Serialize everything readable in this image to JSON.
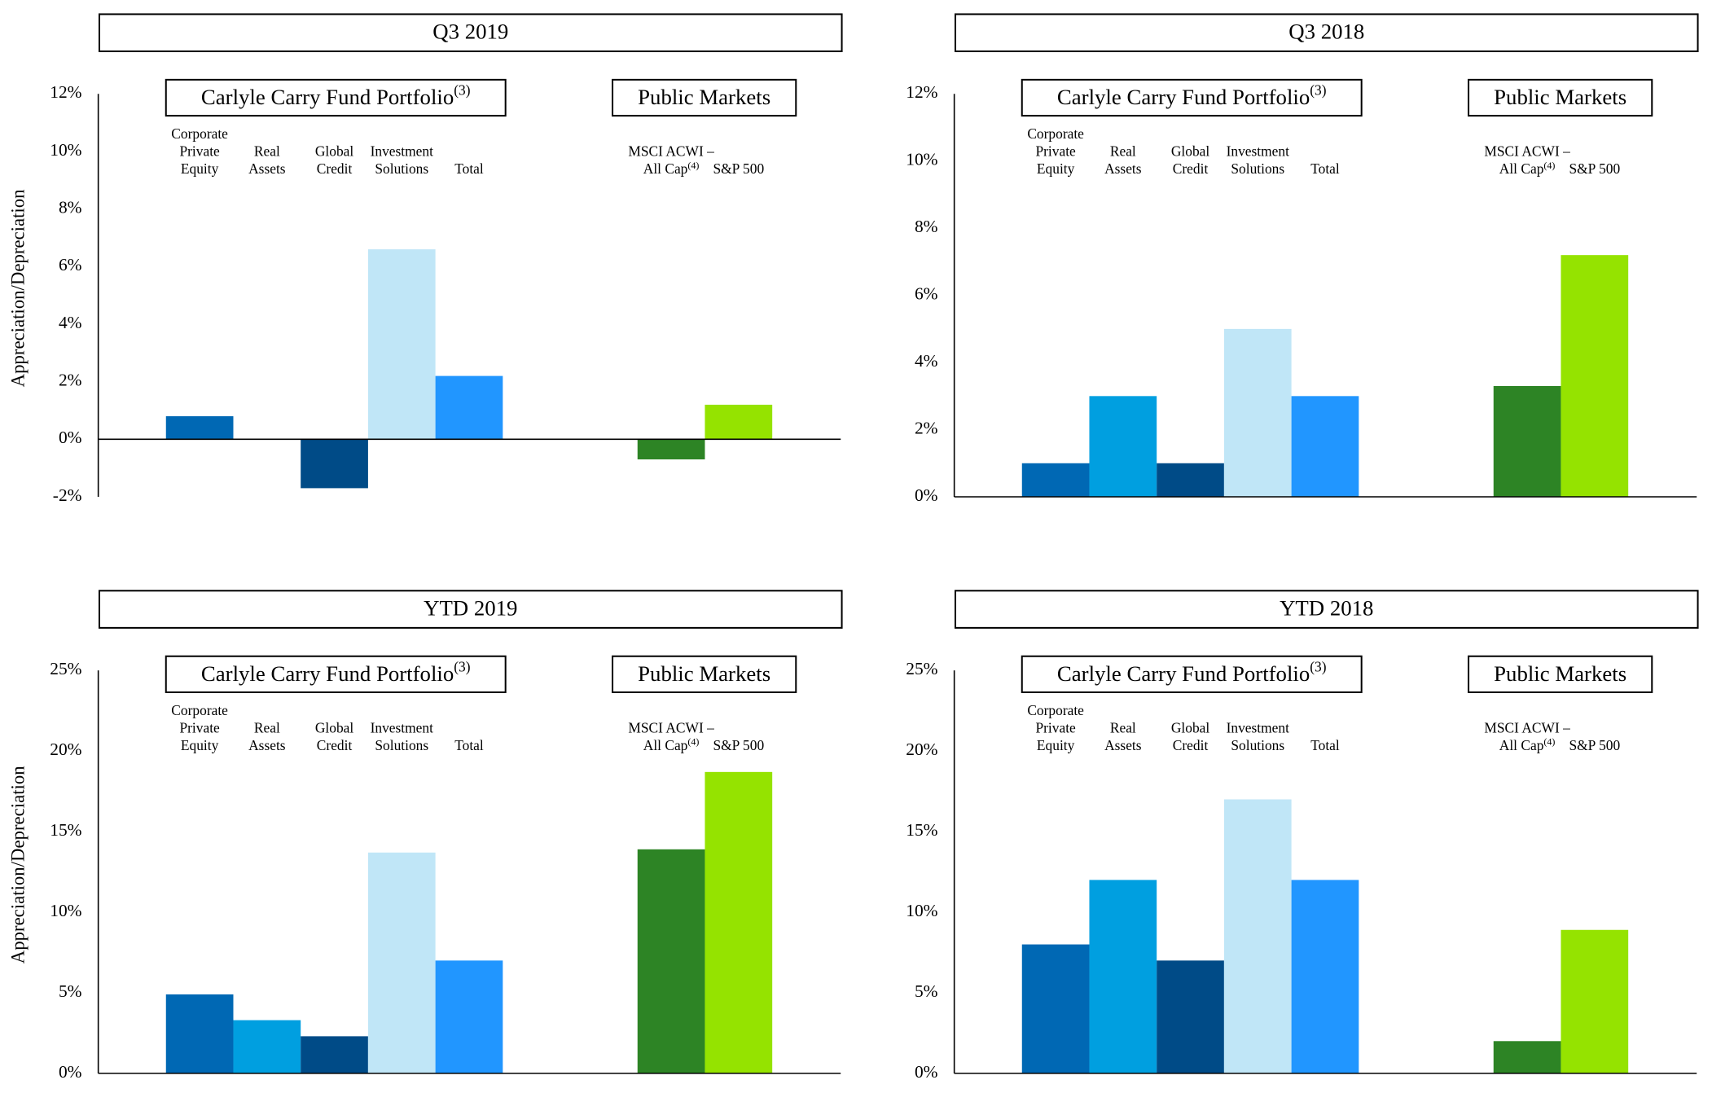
{
  "chart_data": [
    {
      "type": "bar",
      "title": "Q3 2019",
      "y_label": "Appreciation/Depreciation",
      "groups": [
        {
          "label": "Carlyle Carry Fund Portfolio",
          "note": "(3)"
        },
        {
          "label": "Public Markets"
        }
      ],
      "categories": [
        [
          "Corporate",
          "Private",
          "Equity"
        ],
        [
          "Real",
          "Assets"
        ],
        [
          "Global",
          "Credit"
        ],
        [
          "Investment",
          "Solutions"
        ],
        [
          "Total"
        ],
        null,
        null,
        [
          "MSCI ACWI –",
          "All Cap"
        ],
        [
          "S&P 500"
        ]
      ],
      "category_notes": [
        null,
        null,
        null,
        null,
        null,
        null,
        null,
        "(4)",
        null
      ],
      "values": [
        0.8,
        0,
        -1.7,
        6.6,
        2.2,
        null,
        null,
        -0.7,
        1.2
      ],
      "colors": [
        "#0068b4",
        "#009fe0",
        "#004b87",
        "#c0e6f7",
        "#2196ff",
        null,
        null,
        "#2d8425",
        "#95e300"
      ],
      "ylim": [
        -2,
        12
      ],
      "yticks": [
        {
          "value": -2,
          "label": "-2%"
        },
        {
          "value": 0,
          "label": "0%"
        },
        {
          "value": 2,
          "label": "2%"
        },
        {
          "value": 4,
          "label": "4%"
        },
        {
          "value": 6,
          "label": "6%"
        },
        {
          "value": 8,
          "label": "8%"
        },
        {
          "value": 10,
          "label": "10%"
        },
        {
          "value": 12,
          "label": "12%"
        }
      ]
    },
    {
      "type": "bar",
      "title": "Q3 2018",
      "groups": [
        {
          "label": "Carlyle Carry Fund Portfolio",
          "note": "(3)"
        },
        {
          "label": "Public Markets"
        }
      ],
      "categories": [
        [
          "Corporate",
          "Private",
          "Equity"
        ],
        [
          "Real",
          "Assets"
        ],
        [
          "Global",
          "Credit"
        ],
        [
          "Investment",
          "Solutions"
        ],
        [
          "Total"
        ],
        null,
        null,
        [
          "MSCI ACWI –",
          "All Cap"
        ],
        [
          "S&P 500"
        ]
      ],
      "category_notes": [
        null,
        null,
        null,
        null,
        null,
        null,
        null,
        "(4)",
        null
      ],
      "values": [
        1.0,
        3.0,
        1.0,
        5.0,
        3.0,
        null,
        null,
        3.3,
        7.2
      ],
      "colors": [
        "#0068b4",
        "#009fe0",
        "#004b87",
        "#c0e6f7",
        "#2196ff",
        null,
        null,
        "#2d8425",
        "#95e300"
      ],
      "ylim": [
        0,
        12
      ],
      "yticks": [
        {
          "value": 0,
          "label": "0%"
        },
        {
          "value": 2,
          "label": "2%"
        },
        {
          "value": 4,
          "label": "4%"
        },
        {
          "value": 6,
          "label": "6%"
        },
        {
          "value": 8,
          "label": "8%"
        },
        {
          "value": 10,
          "label": "10%"
        },
        {
          "value": 12,
          "label": "12%"
        }
      ]
    },
    {
      "type": "bar",
      "title": "YTD 2019",
      "y_label": "Appreciation/Depreciation",
      "groups": [
        {
          "label": "Carlyle Carry Fund Portfolio",
          "note": "(3)"
        },
        {
          "label": "Public Markets"
        }
      ],
      "categories": [
        [
          "Corporate",
          "Private",
          "Equity"
        ],
        [
          "Real",
          "Assets"
        ],
        [
          "Global",
          "Credit"
        ],
        [
          "Investment",
          "Solutions"
        ],
        [
          "Total"
        ],
        null,
        null,
        [
          "MSCI ACWI –",
          "All Cap"
        ],
        [
          "S&P 500"
        ]
      ],
      "category_notes": [
        null,
        null,
        null,
        null,
        null,
        null,
        null,
        "(4)",
        null
      ],
      "values": [
        4.9,
        3.3,
        2.3,
        13.7,
        7.0,
        null,
        null,
        13.9,
        18.7
      ],
      "colors": [
        "#0068b4",
        "#009fe0",
        "#004b87",
        "#c0e6f7",
        "#2196ff",
        null,
        null,
        "#2d8425",
        "#95e300"
      ],
      "ylim": [
        0,
        25
      ],
      "yticks": [
        {
          "value": 0,
          "label": "0%"
        },
        {
          "value": 5,
          "label": "5%"
        },
        {
          "value": 10,
          "label": "10%"
        },
        {
          "value": 15,
          "label": "15%"
        },
        {
          "value": 20,
          "label": "20%"
        },
        {
          "value": 25,
          "label": "25%"
        }
      ]
    },
    {
      "type": "bar",
      "title": "YTD 2018",
      "groups": [
        {
          "label": "Carlyle Carry Fund Portfolio",
          "note": "(3)"
        },
        {
          "label": "Public Markets"
        }
      ],
      "categories": [
        [
          "Corporate",
          "Private",
          "Equity"
        ],
        [
          "Real",
          "Assets"
        ],
        [
          "Global",
          "Credit"
        ],
        [
          "Investment",
          "Solutions"
        ],
        [
          "Total"
        ],
        null,
        null,
        [
          "MSCI ACWI –",
          "All Cap"
        ],
        [
          "S&P 500"
        ]
      ],
      "category_notes": [
        null,
        null,
        null,
        null,
        null,
        null,
        null,
        "(4)",
        null
      ],
      "values": [
        8.0,
        12.0,
        7.0,
        17.0,
        12.0,
        null,
        null,
        2.0,
        8.9
      ],
      "colors": [
        "#0068b4",
        "#009fe0",
        "#004b87",
        "#c0e6f7",
        "#2196ff",
        null,
        null,
        "#2d8425",
        "#95e300"
      ],
      "ylim": [
        0,
        25
      ],
      "yticks": [
        {
          "value": 0,
          "label": "0%"
        },
        {
          "value": 5,
          "label": "5%"
        },
        {
          "value": 10,
          "label": "10%"
        },
        {
          "value": 15,
          "label": "15%"
        },
        {
          "value": 20,
          "label": "20%"
        },
        {
          "value": 25,
          "label": "25%"
        }
      ]
    }
  ]
}
